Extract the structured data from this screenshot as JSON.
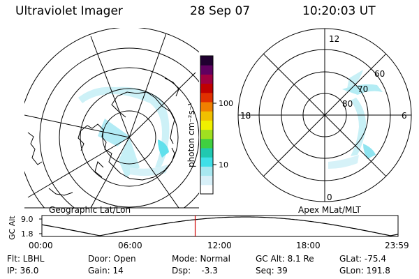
{
  "header": {
    "title": "Ultraviolet Imager",
    "date": "28 Sep 07",
    "time": "10:20:03 UT"
  },
  "left_panel": {
    "caption": "Geographic Lat/Lon"
  },
  "right_panel": {
    "caption": "Apex MLat/MLT",
    "mlt_labels": {
      "top": "12",
      "left": "18",
      "right": "6",
      "bottom": "0"
    },
    "lat_labels": [
      "80",
      "70",
      "60"
    ]
  },
  "colorbar": {
    "label": "photon cm⁻²s⁻¹",
    "ticks": [
      "100",
      "10"
    ],
    "colors": [
      "#ffffff",
      "#d8f0f8",
      "#a8e8f0",
      "#40e0e8",
      "#20c8b0",
      "#40d040",
      "#a0e020",
      "#f0f000",
      "#f0c000",
      "#f08000",
      "#e03000",
      "#c00000",
      "#a00040",
      "#600060",
      "#200030"
    ]
  },
  "altitude_plot": {
    "ylabel": "GC Alt",
    "yticks": [
      "9.0",
      "1.8"
    ],
    "xticks": [
      "00:00",
      "06:00",
      "12:00",
      "18:00",
      "23:59"
    ],
    "current_hour": 10.33
  },
  "info": {
    "filter": "Flt: LBHL",
    "door": "Door: Open",
    "mode": "Mode: Normal",
    "gc_alt": "GC Alt: 8.1 Re",
    "glat": "GLat: -75.4",
    "ip": "IP: 36.0",
    "gain": "Gain: 14",
    "dsp": "Dsp:    -3.3",
    "seq": "Seq: 39",
    "glon": "GLon: 191.8"
  }
}
